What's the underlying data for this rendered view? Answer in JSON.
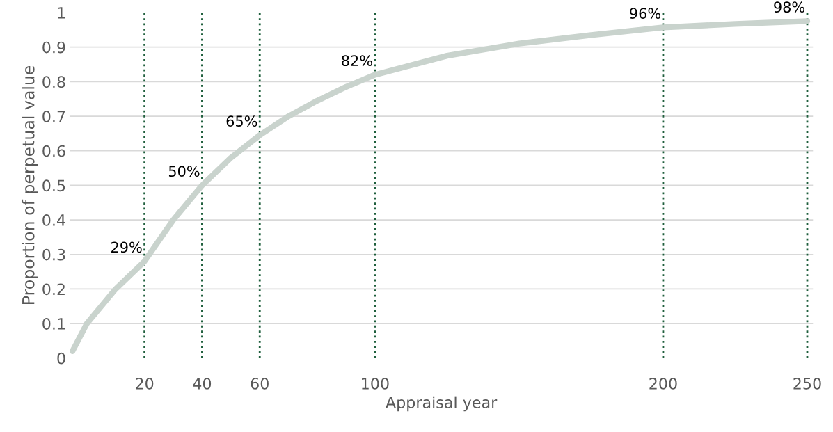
{
  "chart_data": {
    "type": "line",
    "xlabel": "Appraisal year",
    "ylabel": "Proportion of perpetual value",
    "series": [
      {
        "color": "#c9d3cd",
        "x": [
          -5,
          0,
          10,
          20,
          30,
          40,
          50,
          60,
          70,
          80,
          90,
          100,
          125,
          150,
          175,
          200,
          225,
          250
        ],
        "values": [
          0.02,
          0.1,
          0.2,
          0.28,
          0.4,
          0.5,
          0.58,
          0.645,
          0.7,
          0.745,
          0.785,
          0.82,
          0.875,
          0.91,
          0.935,
          0.957,
          0.967,
          0.975
        ]
      }
    ],
    "xlim": [
      -6,
      252
    ],
    "xticks": [
      20,
      40,
      60,
      100,
      200,
      250
    ],
    "ylim": [
      0,
      1
    ],
    "yticks": [
      0,
      0.1,
      0.2,
      0.3,
      0.4,
      0.5,
      0.6,
      0.7,
      0.8,
      0.9,
      1
    ],
    "grid": "y",
    "ref_lines": [
      {
        "axis": "x",
        "value": 20,
        "color": "#1e5e3c",
        "line_style": "dotted"
      },
      {
        "axis": "x",
        "value": 40,
        "color": "#1e5e3c",
        "line_style": "dotted"
      },
      {
        "axis": "x",
        "value": 60,
        "color": "#1e5e3c",
        "line_style": "dotted"
      },
      {
        "axis": "x",
        "value": 100,
        "color": "#1e5e3c",
        "line_style": "dotted"
      },
      {
        "axis": "x",
        "value": 200,
        "color": "#1e5e3c",
        "line_style": "dotted"
      },
      {
        "axis": "x",
        "value": 250,
        "color": "#1e5e3c",
        "line_style": "dotted"
      }
    ],
    "annotations": [
      {
        "text": "29%",
        "x": 20,
        "y": 0.28
      },
      {
        "text": "50%",
        "x": 40,
        "y": 0.5
      },
      {
        "text": "65%",
        "x": 60,
        "y": 0.645
      },
      {
        "text": "82%",
        "x": 100,
        "y": 0.82
      },
      {
        "text": "96%",
        "x": 200,
        "y": 0.957
      },
      {
        "text": "98%",
        "x": 250,
        "y": 0.975
      }
    ]
  }
}
